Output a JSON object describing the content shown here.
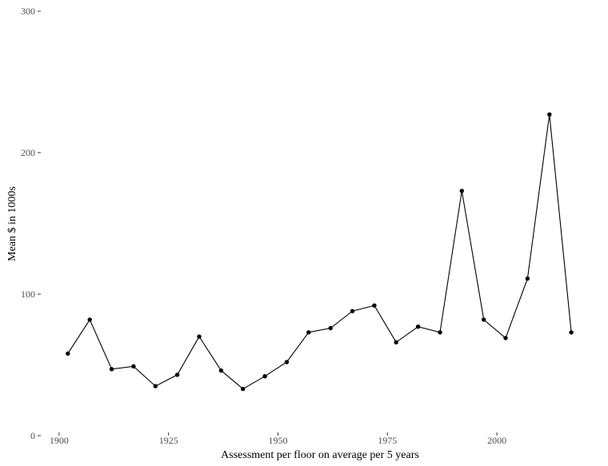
{
  "chart_data": {
    "type": "line",
    "title": "",
    "xlabel": "Assessment per floor on average per 5 years",
    "ylabel": "Mean $ in 1000s",
    "xlim": [
      1896,
      2021
    ],
    "ylim": [
      0,
      300
    ],
    "xticks": [
      1900,
      1925,
      1950,
      1975,
      2000
    ],
    "yticks": [
      0,
      100,
      200,
      300
    ],
    "grid": false,
    "legend": "none",
    "series": [
      {
        "x": [
          1902,
          1907,
          1912,
          1917,
          1922,
          1927,
          1932,
          1937,
          1942,
          1947,
          1952,
          1957,
          1962,
          1967,
          1972,
          1977,
          1982,
          1987,
          1992,
          1997,
          2002,
          2007,
          2012,
          2017
        ],
        "values": [
          58,
          82,
          47,
          49,
          35,
          43,
          70,
          46,
          33,
          42,
          52,
          73,
          76,
          88,
          92,
          66,
          77,
          73,
          173,
          82,
          69,
          111,
          227,
          73
        ]
      }
    ]
  }
}
